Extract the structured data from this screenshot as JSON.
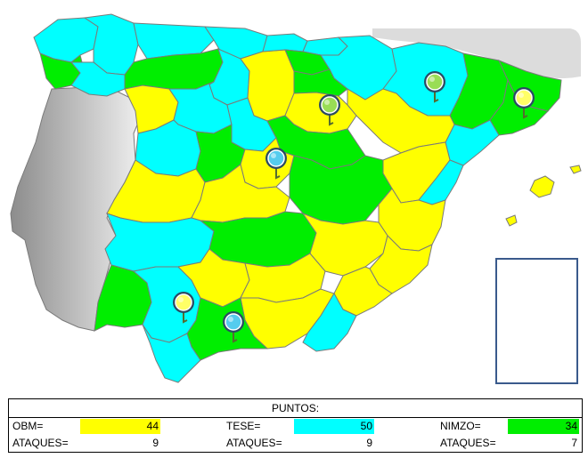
{
  "colors": {
    "obm": "#ffff00",
    "tese": "#00ffff",
    "nimzo": "#00ee00",
    "portugal": "#c8c8c8",
    "france": "#dcdcdc",
    "border": "#7a7a7a"
  },
  "map": {
    "markers": [
      {
        "player": "nimzo",
        "color": "#99dd55"
      },
      {
        "player": "nimzo",
        "color": "#99dd55"
      },
      {
        "player": "obm",
        "color": "#ffff66"
      },
      {
        "player": "tese",
        "color": "#55ccee"
      },
      {
        "player": "obm",
        "color": "#ffff66"
      },
      {
        "player": "tese",
        "color": "#55ccee"
      }
    ]
  },
  "score": {
    "title": "PUNTOS:",
    "players": [
      {
        "label": "OBM=",
        "points": "44",
        "attacks_label": "ATAQUES=",
        "attacks": "9",
        "color": "#ffff00"
      },
      {
        "label": "TESE=",
        "points": "50",
        "attacks_label": "ATAQUES=",
        "attacks": "9",
        "color": "#00ffff"
      },
      {
        "label": "NIMZO=",
        "points": "34",
        "attacks_label": "ATAQUES=",
        "attacks": "7",
        "color": "#00ee00"
      }
    ]
  }
}
